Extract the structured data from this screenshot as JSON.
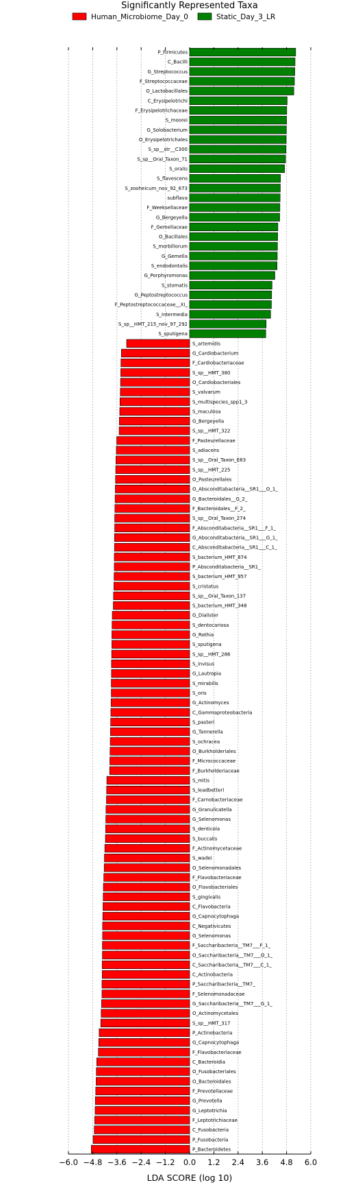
{
  "chart_data": {
    "type": "bar",
    "orientation": "horizontal",
    "title": "Significantly Represented Taxa",
    "xlabel": "LDA SCORE (log 10)",
    "xlim": [
      -6.0,
      6.0
    ],
    "xticks": [
      -6.0,
      -4.8,
      -3.6,
      -2.4,
      -1.2,
      0.0,
      1.2,
      2.4,
      3.6,
      4.8,
      6.0
    ],
    "xtick_labels": [
      "−6.0",
      "−4.8",
      "−3.6",
      "−2.4",
      "−1.2",
      "0.0",
      "1.2",
      "2.4",
      "3.6",
      "4.8",
      "6.0"
    ],
    "grid": "vertical-dotted",
    "legend_position": "top",
    "legend": [
      {
        "name": "Human_Microbiome_Day_0",
        "color": "#ff0000"
      },
      {
        "name": "Static_Day_3_LR",
        "color": "#008000"
      }
    ],
    "series": [
      {
        "name": "Static_Day_3_LR",
        "color": "#008000",
        "categories": [
          "P_Firmicutes",
          "C_Bacilli",
          "G_Streptococcus",
          "F_Streptococcaceae",
          "O_Lactobacillales",
          "C_Erysipelotrichi",
          "F_Erysipelotrichaceae",
          "S_moorei",
          "G_Solobacterium",
          "O_Erysipelotrichales",
          "S_sp__str__C300",
          "S_sp__Oral_Taxon_71",
          "S_oralis",
          "S_flavescens",
          "S_zooheicum_nov_92_673",
          "subflava",
          "F_Weeksellaceae",
          "G_Bergeyella",
          "F_Gemellaceae",
          "O_Bacillales",
          "S_morbillorum",
          "G_Gemella",
          "S_endodontalis",
          "G_Porphyromonas",
          "S_stomatis",
          "G_Peptostreptococcus",
          "F_Peptostreptococcaceae__XI_",
          "S_intermedia",
          "S_sp__HMT_215_nov_97_292",
          "S_sputigena"
        ],
        "values": [
          5.25,
          5.22,
          5.21,
          5.19,
          5.16,
          4.83,
          4.81,
          4.8,
          4.79,
          4.78,
          4.77,
          4.75,
          4.7,
          4.5,
          4.49,
          4.48,
          4.47,
          4.46,
          4.37,
          4.36,
          4.35,
          4.34,
          4.33,
          4.22,
          4.08,
          4.06,
          4.05,
          4.01,
          3.79,
          3.77
        ]
      },
      {
        "name": "Human_Microbiome_Day_0",
        "color": "#ff0000",
        "categories": [
          "S_artemidis",
          "G_Cardiobacterium",
          "F_Cardiobacteriaceae",
          "S_sp__HMT_380",
          "O_Cardiobacteriales",
          "S_valvarum",
          "S_multispecies_spp1_3",
          "S_maculosa",
          "G_Bergeyella",
          "S_sp__HMT_322",
          "F_Pasteurellaceae",
          "S_adiacens",
          "S_sp__Oral_Taxon_E83",
          "S_sp__HMT_225",
          "O_Pasteurellales",
          "O_Absconditabacteria__SR1___O_1_",
          "G_Bacteroidales__G_2_",
          "F_Bacteroidales__F_2_",
          "S_sp__Oral_Taxon_274",
          "F_Absconditabacteria__SR1___F_1_",
          "G_Absconditabacteria__SR1___G_1_",
          "C_Absconditabacteria__SR1___C_1_",
          "S_bacterium_HMT_874",
          "P_Absconditabacteria__SR1_",
          "S_bacterium_HMT_957",
          "S_cristatus",
          "S_sp__Oral_Taxon_137",
          "S_bacterium_HMT_348",
          "G_Dialister",
          "S_dentocariosa",
          "G_Rothia",
          "S_sputigena",
          "S_sp__HMT_286",
          "S_invisus",
          "G_Lautropia",
          "S_mirabilis",
          "S_oris",
          "G_Actinomyces",
          "C_Gammaproteobacteria",
          "S_pasteri",
          "G_Tannerella",
          "S_ochracea",
          "O_Burkholderiales",
          "F_Micrococcaceae",
          "F_Burkholderiaceae",
          "S_mitis",
          "S_leadbetteri",
          "F_Carnobacteriaceae",
          "G_Granulicatella",
          "G_Selenomonas",
          "S_denticola",
          "S_buccalis",
          "F_Actinomycetaceae",
          "S_wadei",
          "O_Selenomonadales",
          "F_Flavobacteriaceae",
          "O_Flavobacteriales",
          "S_gingivalis",
          "C_Flavobacteria",
          "G_Capnocytophaga",
          "C_Negativicutes",
          "G_Selenomonas",
          "F_Saccharibacteria__TM7___F_1_",
          "O_Saccharibacteria__TM7___O_1_",
          "C_Saccharibacteria__TM7___C_1_",
          "C_Actinobacteria",
          "P_Saccharibacteria__TM7_",
          "F_Selenomonadaceae",
          "G_Saccharibacteria__TM7___G_1_",
          "O_Actinomycetales",
          "S_sp__HMT_317",
          "P_Actinobacteria",
          "G_Capnocytophaga",
          "F_Flavobacteriaceae",
          "C_Bacteroidia",
          "O_Fusobacteriales",
          "O_Bacteroidales",
          "F_Prevotellaceae",
          "G_Prevotella",
          "G_Leptotrichia",
          "F_Leptotrichiaceae",
          "C_Fusobacteria",
          "P_Fusobacteria",
          "P_Bacteroidetes"
        ],
        "values": [
          -3.12,
          -3.38,
          -3.4,
          -3.41,
          -3.42,
          -3.43,
          -3.45,
          -3.46,
          -3.48,
          -3.49,
          -3.61,
          -3.63,
          -3.65,
          -3.66,
          -3.67,
          -3.68,
          -3.69,
          -3.7,
          -3.71,
          -3.71,
          -3.72,
          -3.72,
          -3.73,
          -3.73,
          -3.74,
          -3.75,
          -3.77,
          -3.78,
          -3.83,
          -3.84,
          -3.85,
          -3.85,
          -3.86,
          -3.87,
          -3.87,
          -3.88,
          -3.88,
          -3.89,
          -3.9,
          -3.91,
          -3.92,
          -3.93,
          -3.94,
          -3.95,
          -3.96,
          -4.1,
          -4.11,
          -4.12,
          -4.14,
          -4.15,
          -4.16,
          -4.17,
          -4.2,
          -4.22,
          -4.23,
          -4.25,
          -4.27,
          -4.28,
          -4.29,
          -4.3,
          -4.31,
          -4.31,
          -4.32,
          -4.32,
          -4.33,
          -4.33,
          -4.34,
          -4.34,
          -4.36,
          -4.38,
          -4.4,
          -4.48,
          -4.5,
          -4.52,
          -4.6,
          -4.62,
          -4.63,
          -4.65,
          -4.67,
          -4.68,
          -4.7,
          -4.72,
          -4.78,
          -4.87
        ]
      }
    ]
  }
}
